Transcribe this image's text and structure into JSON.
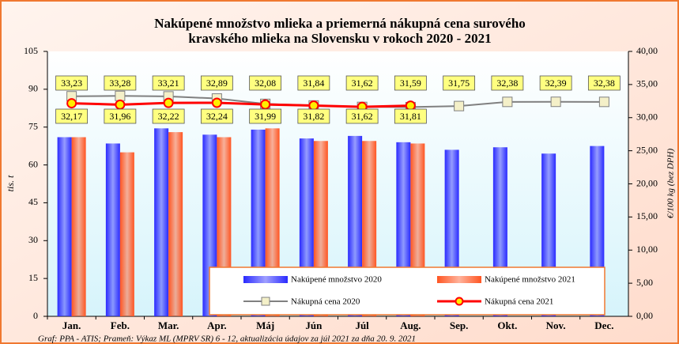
{
  "chart_data": {
    "type": "bar",
    "title_lines": [
      "Nakúpené množstvo mlieka a priemerná nákupná cena surového",
      "kravského mlieka na Slovensku v rokoch 2020 - 2021"
    ],
    "ylabel": "tis. t",
    "y2label": "€/100 kg (bez DPH)",
    "note": "Graf: PPA - ATIS; Prameň: Výkaz ML (MPRV SR) 6 - 12, aktualizácia údajov za júl 2021 za dňa 20. 9. 2021",
    "categories": [
      "Jan.",
      "Feb.",
      "Mar.",
      "Apr.",
      "Máj",
      "Jún",
      "Júl",
      "Aug.",
      "Sep.",
      "Okt.",
      "Nov.",
      "Dec."
    ],
    "ylim": [
      0,
      105
    ],
    "yticks": [
      0,
      15,
      30,
      45,
      60,
      75,
      90,
      105
    ],
    "y2lim": [
      0,
      40
    ],
    "y2ticks": [
      {
        "value": 0,
        "label": "0,00"
      },
      {
        "value": 5,
        "label": "5,00"
      },
      {
        "value": 10,
        "label": "10,00"
      },
      {
        "value": 15,
        "label": "15,00"
      },
      {
        "value": 20,
        "label": "20,00"
      },
      {
        "value": 25,
        "label": "25,00"
      },
      {
        "value": 30,
        "label": "30,00"
      },
      {
        "value": 35,
        "label": "35,00"
      },
      {
        "value": 40,
        "label": "40,00"
      }
    ],
    "series": [
      {
        "name": "Nakúpené množstvo 2020",
        "kind": "bar",
        "color": "#2a2aff",
        "values": [
          71,
          68.5,
          74.5,
          72,
          74,
          70.5,
          71.5,
          69,
          66,
          67,
          64.5,
          67.5
        ]
      },
      {
        "name": "Nakúpené množstvo 2021",
        "kind": "bar",
        "color": "#ff5522",
        "values": [
          71,
          65,
          73,
          71,
          74.5,
          69.5,
          69.5,
          68.5,
          null,
          null,
          null,
          null
        ]
      },
      {
        "name": "Nákupná cena 2020",
        "kind": "line",
        "axis": "y2",
        "color": "#808080",
        "values": [
          33.23,
          33.28,
          33.21,
          32.89,
          32.08,
          31.84,
          31.62,
          31.59,
          31.75,
          32.38,
          32.39,
          32.38
        ],
        "value_labels": [
          "33,23",
          "33,28",
          "33,21",
          "32,89",
          "32,08",
          "31,84",
          "31,62",
          "31,59",
          "31,75",
          "32,38",
          "32,39",
          "32,38"
        ]
      },
      {
        "name": "Nákupná cena 2021",
        "kind": "line",
        "axis": "y2",
        "color": "#ff0000",
        "values": [
          32.17,
          31.96,
          32.22,
          32.24,
          31.99,
          31.82,
          31.62,
          31.81,
          null,
          null,
          null,
          null
        ],
        "value_labels": [
          "32,17",
          "31,96",
          "32,22",
          "32,24",
          "31,99",
          "31,82",
          "31,62",
          "31,81",
          null,
          null,
          null,
          null
        ]
      }
    ]
  }
}
